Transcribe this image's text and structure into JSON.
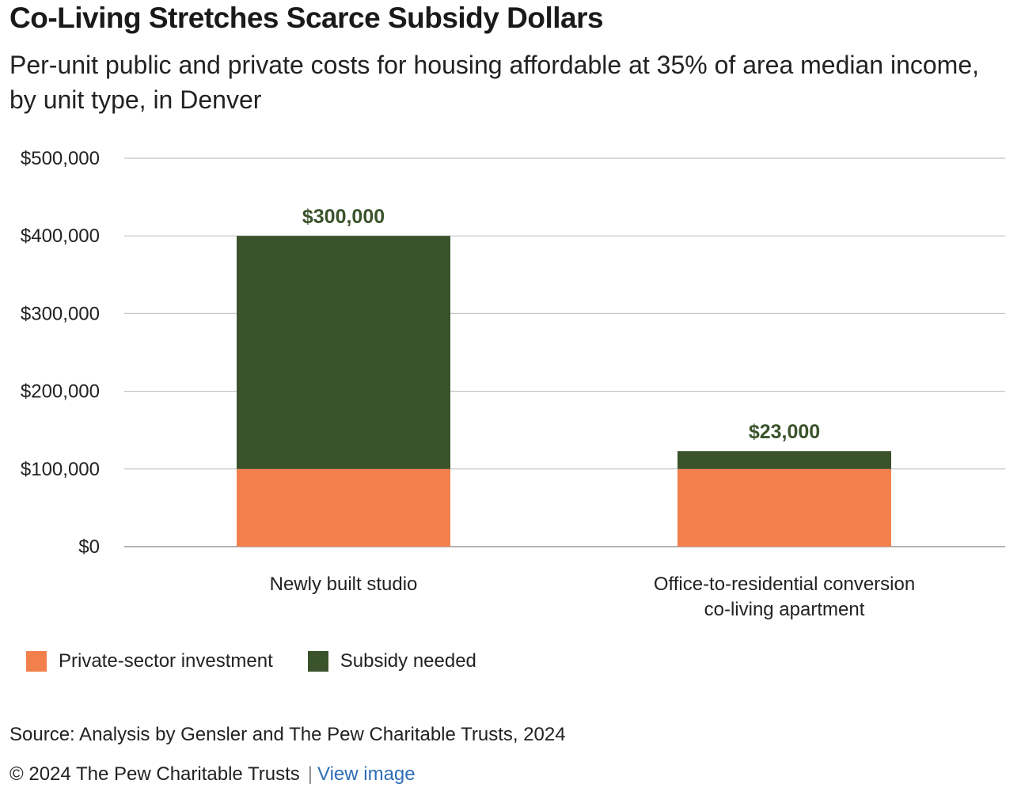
{
  "header": {
    "title": "Co-Living Stretches Scarce Subsidy Dollars",
    "subtitle": "Per-unit public and private costs for housing affordable at 35% of area median income, by unit type, in Denver"
  },
  "chart_data": {
    "type": "bar",
    "stacked": true,
    "categories": [
      "Newly built studio",
      "Office-to-residential conversion co-living apartment"
    ],
    "series": [
      {
        "name": "Private-sector investment",
        "values": [
          100000,
          100000
        ],
        "color": "#f2804d"
      },
      {
        "name": "Subsidy needed",
        "values": [
          300000,
          23000
        ],
        "color": "#3a532b"
      }
    ],
    "data_labels": [
      "$300,000",
      "$23,000"
    ],
    "data_label_color": "#3a532b",
    "ylim": [
      0,
      500000
    ],
    "yticks": [
      0,
      100000,
      200000,
      300000,
      400000,
      500000
    ],
    "ytick_labels": [
      "$0",
      "$100,000",
      "$200,000",
      "$300,000",
      "$400,000",
      "$500,000"
    ],
    "xlabel": "",
    "ylabel": "",
    "grid": true,
    "legend_position": "bottom-left"
  },
  "legend": {
    "items": [
      {
        "label": "Private-sector investment",
        "color": "#f2804d"
      },
      {
        "label": "Subsidy needed",
        "color": "#3a532b"
      }
    ]
  },
  "footer": {
    "source": "Source: Analysis by Gensler and The Pew Charitable Trusts, 2024",
    "copyright": "© 2024 The Pew Charitable Trusts",
    "separator": "|",
    "view_image": "View image"
  }
}
